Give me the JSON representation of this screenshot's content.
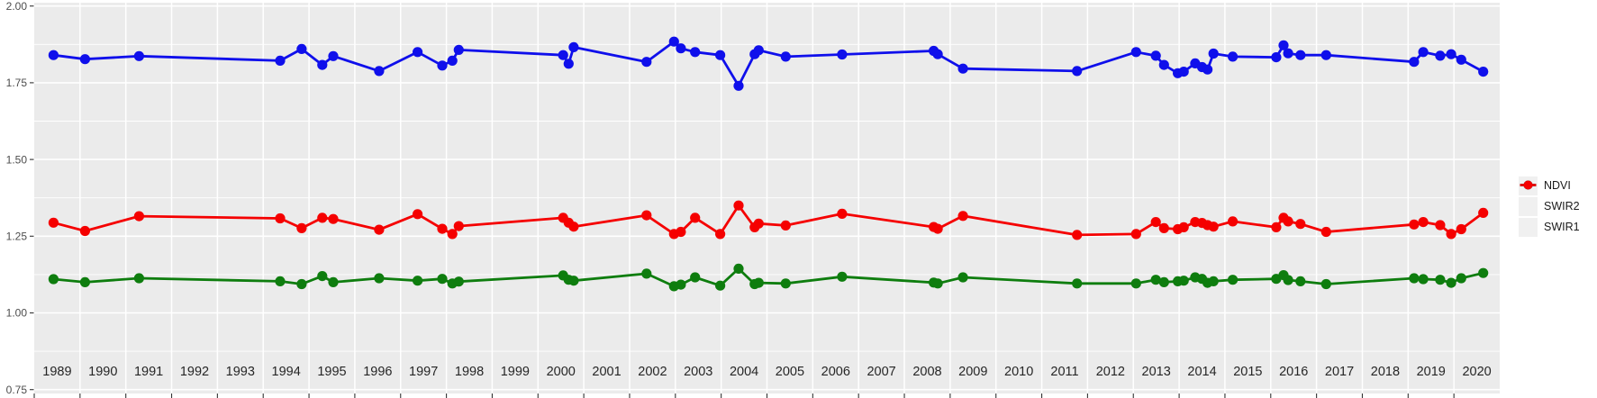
{
  "chart_data": {
    "type": "line",
    "title": "",
    "xlabel": "",
    "ylabel": "",
    "grid": "on",
    "panel_background": "#ebebeb",
    "gridline_color": "#ffffff",
    "legend_position": "right",
    "x_axis": {
      "min": 1989,
      "max": 2021,
      "categories": [
        "1989",
        "1990",
        "1991",
        "1992",
        "1993",
        "1994",
        "1995",
        "1996",
        "1997",
        "1998",
        "1999",
        "2000",
        "2001",
        "2002",
        "2003",
        "2004",
        "2005",
        "2006",
        "2007",
        "2008",
        "2009",
        "2010",
        "2011",
        "2012",
        "2013",
        "2014",
        "2015",
        "2016",
        "2017",
        "2018",
        "2019",
        "2020"
      ]
    },
    "y_axis": {
      "tick_labels": [
        "2.00",
        "1.75",
        "1.50",
        "1.25",
        "1.00",
        "0.75"
      ],
      "tick_values": [
        2.0,
        1.75,
        1.5,
        1.25,
        1.0,
        0.75
      ],
      "minor_tick_values": [
        1.875,
        1.625,
        1.375,
        1.125,
        0.875
      ],
      "range": [
        0.74,
        2.01
      ]
    },
    "x": [
      1989.42,
      1990.11,
      1991.29,
      1994.37,
      1994.84,
      1995.29,
      1995.53,
      1996.53,
      1997.37,
      1997.91,
      1998.13,
      1998.27,
      2000.55,
      2000.67,
      2000.78,
      2002.37,
      2002.97,
      2003.12,
      2003.43,
      2003.98,
      2004.38,
      2004.73,
      2004.82,
      2005.41,
      2006.64,
      2008.64,
      2008.73,
      2009.28,
      2011.77,
      2013.06,
      2013.49,
      2013.67,
      2013.97,
      2014.1,
      2014.35,
      2014.5,
      2014.62,
      2014.75,
      2015.17,
      2016.12,
      2016.28,
      2016.38,
      2016.65,
      2017.21,
      2019.13,
      2019.33,
      2019.7,
      2019.94,
      2020.16,
      2020.64
    ],
    "series": [
      {
        "name": "NDVI",
        "color": "#0f0feb",
        "values": [
          1.84,
          1.827,
          1.837,
          1.822,
          1.86,
          1.808,
          1.837,
          1.788,
          1.85,
          1.806,
          1.822,
          1.857,
          1.84,
          1.812,
          1.866,
          1.818,
          1.884,
          1.862,
          1.85,
          1.84,
          1.74,
          1.843,
          1.856,
          1.835,
          1.842,
          1.854,
          1.843,
          1.796,
          1.788,
          1.85,
          1.838,
          1.808,
          1.781,
          1.786,
          1.813,
          1.801,
          1.793,
          1.845,
          1.835,
          1.833,
          1.872,
          1.846,
          1.84,
          1.84,
          1.818,
          1.85,
          1.838,
          1.843,
          1.825,
          1.786
        ]
      },
      {
        "name": "SWIR2",
        "color": "#0e7d0e",
        "values": [
          1.11,
          1.1,
          1.113,
          1.103,
          1.094,
          1.12,
          1.1,
          1.113,
          1.105,
          1.111,
          1.096,
          1.102,
          1.122,
          1.108,
          1.105,
          1.128,
          1.087,
          1.092,
          1.116,
          1.089,
          1.144,
          1.094,
          1.098,
          1.096,
          1.118,
          1.099,
          1.096,
          1.116,
          1.096,
          1.096,
          1.108,
          1.1,
          1.103,
          1.105,
          1.116,
          1.111,
          1.098,
          1.103,
          1.108,
          1.111,
          1.123,
          1.107,
          1.103,
          1.094,
          1.113,
          1.11,
          1.108,
          1.098,
          1.113,
          1.13
        ]
      },
      {
        "name": "SWIR1",
        "color": "#f50000",
        "values": [
          1.294,
          1.267,
          1.315,
          1.308,
          1.276,
          1.31,
          1.306,
          1.271,
          1.322,
          1.274,
          1.257,
          1.283,
          1.31,
          1.294,
          1.281,
          1.318,
          1.257,
          1.264,
          1.31,
          1.257,
          1.35,
          1.279,
          1.291,
          1.285,
          1.323,
          1.28,
          1.274,
          1.316,
          1.254,
          1.257,
          1.296,
          1.276,
          1.273,
          1.279,
          1.296,
          1.293,
          1.286,
          1.281,
          1.298,
          1.279,
          1.31,
          1.298,
          1.29,
          1.264,
          1.288,
          1.296,
          1.286,
          1.257,
          1.273,
          1.326
        ]
      }
    ],
    "legend_entries": [
      "NDVI",
      "SWIR2",
      "SWIR1"
    ]
  }
}
